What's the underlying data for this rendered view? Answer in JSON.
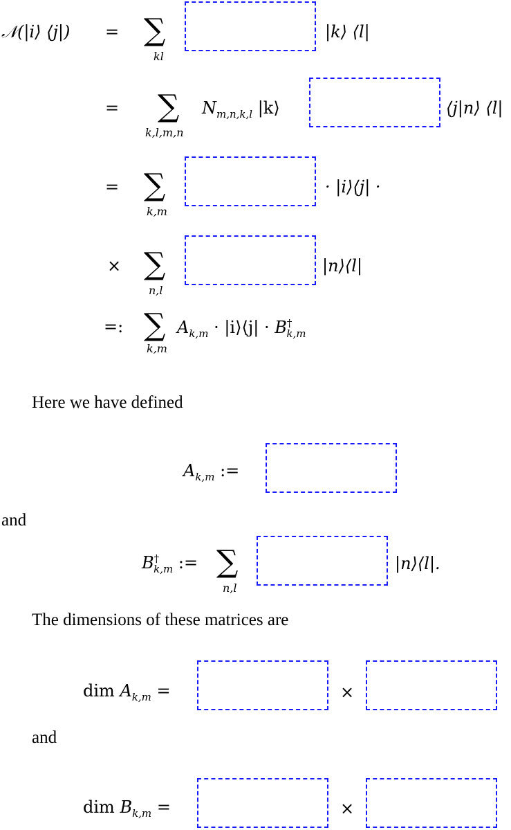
{
  "equations": {
    "row1": {
      "lhs": "𝒩(|i⟩ ⟨j|)",
      "rel": "=",
      "sum_index": "kl",
      "rest": "|k⟩ ⟨l|"
    },
    "row2": {
      "rel": "=",
      "sum_index": "k,l,m,n",
      "pre": "N",
      "pre_sub": "m,n,k,l",
      "pre2": "|k⟩",
      "rest": "⟨j|n⟩ ⟨l|"
    },
    "row3": {
      "rel": "=",
      "sum_index": "k,m",
      "rest": "· |i⟩⟨j| ·"
    },
    "row4": {
      "rel": "×",
      "sum_index": "n,l",
      "rest": "|n⟩⟨l|"
    },
    "row5": {
      "rel": "=:",
      "sum_index": "k,m",
      "a": "A",
      "a_sub": "k,m",
      "mid": " · |i⟩⟨j| · ",
      "b": "B",
      "b_sup": "†",
      "b_sub": "k,m"
    }
  },
  "text": {
    "here": "Here we have defined",
    "and1": "and",
    "dims": "The dimensions of these matrices are",
    "and2": "and"
  },
  "defs": {
    "a_def": {
      "sym": "A",
      "sub": "k,m",
      "rel": ":="
    },
    "b_def": {
      "sym": "B",
      "sup": "†",
      "sub": "k,m",
      "rel": ":=",
      "sum_index": "n,l",
      "rest": "|n⟩⟨l|."
    },
    "dim_a": {
      "op": "dim",
      "sym": "A",
      "sub": "k,m",
      "rel": "=",
      "times": "×"
    },
    "dim_b": {
      "op": "dim",
      "sym": "B",
      "sub": "k,m",
      "rel": "=",
      "times": "×"
    }
  },
  "colors": {
    "box_border": "#1a1aff"
  }
}
